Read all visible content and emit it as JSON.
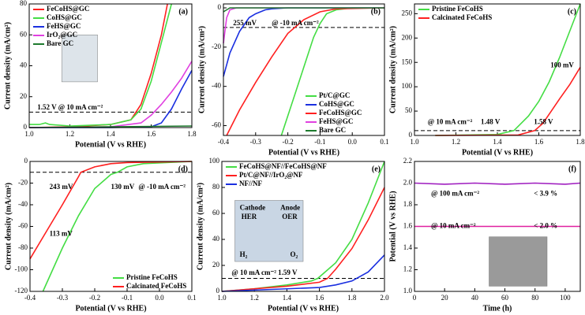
{
  "chart_data": [
    {
      "type": "line",
      "panel": "(a)",
      "xlabel": "Potential (V vs RHE)",
      "ylabel": "Current density (mA/cm²)",
      "xlim": [
        1.0,
        1.8
      ],
      "ylim": [
        0,
        80
      ],
      "xticks": [
        {
          "value": 1.0,
          "label": "1.0"
        },
        1.2,
        1.4,
        1.6,
        1.8
      ],
      "yticks": [
        0,
        20,
        40,
        60,
        80
      ],
      "legend": "upper left",
      "reference_y": 10,
      "annotations": [
        "1.52 V @ 10 mA cm⁻²"
      ],
      "series": [
        {
          "name": "FeCoHS@GC",
          "color": "#ff2020",
          "x": [
            1.0,
            1.2,
            1.4,
            1.5,
            1.55,
            1.6,
            1.65,
            1.68
          ],
          "values": [
            0,
            0.5,
            2,
            5,
            15,
            35,
            60,
            80
          ]
        },
        {
          "name": "CoHS@GC",
          "color": "#44dd44",
          "x": [
            1.0,
            1.05,
            1.08,
            1.1,
            1.2,
            1.4,
            1.5,
            1.55,
            1.6,
            1.65,
            1.7
          ],
          "values": [
            2,
            2,
            3,
            2,
            1,
            2,
            5,
            12,
            30,
            55,
            80
          ]
        },
        {
          "name": "FeHS@GC",
          "color": "#1a2fe0",
          "x": [
            1.0,
            1.4,
            1.6,
            1.65,
            1.7,
            1.75,
            1.8
          ],
          "values": [
            0,
            0,
            0.5,
            3,
            12,
            25,
            37
          ]
        },
        {
          "name": "IrO₂@GC",
          "color": "#e040e0",
          "x": [
            1.0,
            1.4,
            1.55,
            1.6,
            1.65,
            1.7,
            1.75,
            1.8
          ],
          "values": [
            0,
            0.5,
            3,
            8,
            15,
            23,
            32,
            43
          ]
        },
        {
          "name": "Bare GC",
          "color": "#1e7a2e",
          "x": [
            1.0,
            1.8
          ],
          "values": [
            0,
            1
          ]
        }
      ]
    },
    {
      "type": "line",
      "panel": "(b)",
      "xlabel": "Potential (V vs RHE)",
      "ylabel": "Current density (mA/cm²)",
      "xlim": [
        -0.4,
        0.1
      ],
      "ylim": [
        -65,
        2
      ],
      "xticks": [
        -0.4,
        -0.3,
        -0.2,
        -0.1,
        {
          "value": 0,
          "label": "0.0"
        },
        0.1
      ],
      "yticks": [
        -60,
        -40,
        -20,
        0
      ],
      "legend": "lower right",
      "reference_y": -10,
      "annotations": [
        "255 mV",
        "@ -10 mA cm⁻²"
      ],
      "series": [
        {
          "name": "Pt/C@GC",
          "color": "#44dd44",
          "x": [
            -0.22,
            -0.18,
            -0.15,
            -0.12,
            -0.1,
            -0.08,
            -0.05,
            0.0,
            0.1
          ],
          "values": [
            -65,
            -45,
            -30,
            -15,
            -8,
            -3,
            -1,
            0,
            0
          ]
        },
        {
          "name": "CoHS@GC",
          "color": "#1a2fe0",
          "x": [
            -0.4,
            -0.38,
            -0.35,
            -0.32,
            -0.3,
            -0.27,
            -0.25,
            -0.2,
            0.1
          ],
          "values": [
            -35,
            -23,
            -12,
            -5,
            -3,
            -1,
            -0.5,
            0,
            0
          ]
        },
        {
          "name": "FeCoHS@GC",
          "color": "#ff2020",
          "x": [
            -0.39,
            -0.35,
            -0.3,
            -0.25,
            -0.2,
            -0.15,
            -0.1,
            -0.05,
            0.1
          ],
          "values": [
            -65,
            -52,
            -38,
            -25,
            -13,
            -6,
            -2,
            -0.5,
            0
          ]
        },
        {
          "name": "FeHS@GC",
          "color": "#e040e0",
          "x": [
            -0.4,
            -0.39,
            -0.38,
            -0.36,
            0.1
          ],
          "values": [
            -18,
            -5,
            -1,
            0,
            0
          ]
        },
        {
          "name": "Bare GC",
          "color": "#1e7a2e",
          "x": [
            -0.4,
            -0.38,
            0.1
          ],
          "values": [
            -2,
            0,
            0
          ]
        }
      ]
    },
    {
      "type": "line",
      "panel": "(c)",
      "xlabel": "Potential (V vs RHE)",
      "ylabel": "Current density (mA/cm²)",
      "xlim": [
        1.0,
        1.8
      ],
      "ylim": [
        0,
        270
      ],
      "xticks": [
        {
          "value": 1.0,
          "label": "1.0"
        },
        1.2,
        1.4,
        1.6,
        1.8
      ],
      "yticks": [
        0,
        50,
        100,
        150,
        200,
        250
      ],
      "legend": "upper left",
      "reference_y": 10,
      "annotations": [
        "@ 10 mA cm⁻²",
        "1.48 V",
        "1.58 V",
        "100 mV"
      ],
      "series": [
        {
          "name": "Pristine FeCoHS",
          "color": "#44dd44",
          "x": [
            1.1,
            1.4,
            1.48,
            1.55,
            1.6,
            1.65,
            1.7,
            1.75,
            1.8
          ],
          "values": [
            0,
            2,
            10,
            40,
            70,
            110,
            160,
            215,
            270
          ]
        },
        {
          "name": "Calcinated FeCoHS",
          "color": "#ff2020",
          "x": [
            1.1,
            1.5,
            1.58,
            1.62,
            1.66,
            1.7,
            1.75,
            1.8
          ],
          "values": [
            0,
            1,
            10,
            25,
            50,
            75,
            105,
            140
          ]
        }
      ]
    },
    {
      "type": "line",
      "panel": "(d)",
      "xlabel": "Potential (V vs RHE)",
      "ylabel": "Current density (mA/cm²)",
      "xlim": [
        -0.4,
        0.1
      ],
      "ylim": [
        -120,
        0
      ],
      "xticks": [
        -0.4,
        -0.3,
        -0.2,
        -0.1,
        {
          "value": 0,
          "label": "0.0"
        },
        0.1
      ],
      "yticks": [
        -120,
        -100,
        -80,
        -60,
        -40,
        -20,
        0
      ],
      "legend": "lower right",
      "reference_y": -10,
      "annotations": [
        "243 mV",
        "130 mV",
        "@ -10 mA cm⁻²",
        "113 mV"
      ],
      "series": [
        {
          "name": "Pristine FeCoHS",
          "color": "#44dd44",
          "x": [
            -0.36,
            -0.3,
            -0.25,
            -0.2,
            -0.15,
            -0.13,
            -0.1,
            -0.05,
            0.1
          ],
          "values": [
            -120,
            -80,
            -50,
            -25,
            -12,
            -10,
            -5,
            -2,
            0
          ]
        },
        {
          "name": "Calcinated FeCoHS",
          "color": "#ff2020",
          "x": [
            -0.4,
            -0.35,
            -0.3,
            -0.25,
            -0.243,
            -0.2,
            -0.15,
            -0.1,
            0.1
          ],
          "values": [
            -90,
            -65,
            -40,
            -14,
            -10,
            -5,
            -2,
            -1,
            0
          ]
        }
      ]
    },
    {
      "type": "line",
      "panel": "(e)",
      "xlabel": "Potential (V vs RHE)",
      "ylabel": "Current density (mA/cm²)",
      "xlim": [
        1.0,
        2.0
      ],
      "ylim": [
        0,
        100
      ],
      "xticks": [
        {
          "value": 1.0,
          "label": "1.0"
        },
        1.2,
        1.4,
        1.6,
        1.8,
        {
          "value": 2.0,
          "label": "2.0"
        }
      ],
      "yticks": [
        0,
        20,
        40,
        60,
        80,
        100
      ],
      "legend": "upper left",
      "reference_y": 10,
      "annotations": [
        "@ 10 mA cm⁻² 1.59 V",
        "Cathode",
        "HER",
        "Anode",
        "OER",
        "H₂",
        "O₂"
      ],
      "series": [
        {
          "name": "FeCoHS@NF//FeCoHS@NF",
          "color": "#44dd44",
          "x": [
            1.0,
            1.2,
            1.4,
            1.55,
            1.59,
            1.7,
            1.8,
            1.9,
            2.0
          ],
          "values": [
            0,
            2,
            5,
            8,
            10,
            22,
            40,
            68,
            100
          ]
        },
        {
          "name": "Pt/C@NF//IrO₂@NF",
          "color": "#ff2020",
          "x": [
            1.0,
            1.4,
            1.6,
            1.65,
            1.7,
            1.8,
            1.9,
            2.0
          ],
          "values": [
            0,
            4,
            7,
            10,
            17,
            33,
            55,
            80
          ]
        },
        {
          "name": "NF//NF",
          "color": "#1a2fe0",
          "x": [
            1.0,
            1.6,
            1.7,
            1.8,
            1.9,
            2.0
          ],
          "values": [
            0,
            3,
            5,
            8,
            15,
            28
          ]
        }
      ]
    },
    {
      "type": "line",
      "panel": "(f)",
      "xlabel": "Time (h)",
      "ylabel": "Potential (V vs RHE)",
      "xlim": [
        0,
        110
      ],
      "ylim": [
        1.0,
        2.2
      ],
      "xticks": [
        0,
        20,
        40,
        60,
        80,
        100
      ],
      "yticks": [
        {
          "value": 1.0,
          "label": "1.0"
        },
        1.2,
        1.4,
        1.6,
        1.8,
        {
          "value": 2.0,
          "label": "2.0"
        },
        2.2
      ],
      "annotations": [
        "@ 100 mA cm⁻²",
        "< 3.9 %",
        "@ 10 mA cm⁻²",
        "< 2.0 %"
      ],
      "series": [
        {
          "color": "#a020c0",
          "x": [
            0,
            20,
            40,
            60,
            80,
            100,
            110
          ],
          "values": [
            2.0,
            1.99,
            2.0,
            1.99,
            2.0,
            1.99,
            2.0
          ]
        },
        {
          "color": "#e020a0",
          "x": [
            0,
            20,
            40,
            60,
            80,
            100,
            110
          ],
          "values": [
            1.6,
            1.6,
            1.6,
            1.6,
            1.6,
            1.6,
            1.6
          ]
        }
      ]
    }
  ]
}
